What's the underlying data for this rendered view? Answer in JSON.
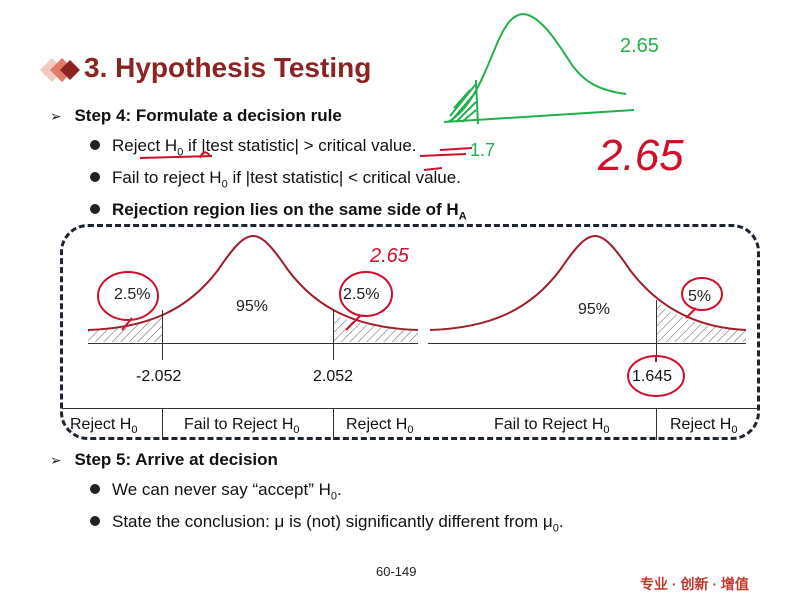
{
  "slide": {
    "title": "3. Hypothesis Testing",
    "page_number": "60-149",
    "brand_text": "专业 · 创新 · 增值",
    "accent_color": "#8b2323"
  },
  "step4": {
    "heading": "Step 4: Formulate a decision rule",
    "bullets": [
      {
        "prefix": "Reject H",
        "sub": "0",
        "suffix": " if |test statistic| > critical value."
      },
      {
        "prefix": "Fail to reject H",
        "sub": "0",
        "suffix": " if |test statistic| < critical value."
      },
      {
        "prefix": "Rejection region lies on the same side of H",
        "sub": "A",
        "suffix": ""
      }
    ]
  },
  "two_tailed": {
    "left_tail_pct": "2.5%",
    "center_pct": "95%",
    "right_tail_pct": "2.5%",
    "left_critical": "-2.052",
    "right_critical": "2.052",
    "regions": [
      {
        "prefix": "Reject H",
        "sub": "0"
      },
      {
        "prefix": "Fail to Reject H",
        "sub": "0"
      },
      {
        "prefix": "Reject H",
        "sub": "0"
      }
    ]
  },
  "one_tailed": {
    "center_pct": "95%",
    "right_tail_pct": "5%",
    "critical": "1.645",
    "regions": [
      {
        "prefix": "Fail to Reject H",
        "sub": "0"
      },
      {
        "prefix": "Reject H",
        "sub": "0"
      }
    ]
  },
  "step5": {
    "heading": "Step 5: Arrive at decision",
    "bullets": [
      {
        "prefix": "We can never say “accept” H",
        "sub": "0",
        "suffix": "."
      },
      {
        "prefix": "State the conclusion: μ is (not) significantly different from μ",
        "sub": "0",
        "suffix": "."
      }
    ]
  },
  "handwriting": {
    "green_top": "2.65",
    "green_small": "1.7",
    "red_big": "2.65",
    "red_mid": "2.65",
    "ink_colors": {
      "red": "#d0102a",
      "green": "#22b04a"
    }
  }
}
